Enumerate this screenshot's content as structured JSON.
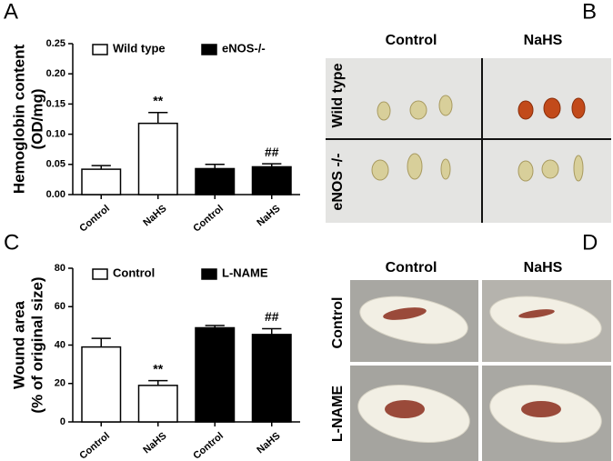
{
  "panel_labels": [
    "A",
    "B",
    "C",
    "D"
  ],
  "chart_data": [
    {
      "type": "bar",
      "y_label": [
        "Hemoglobin content",
        "(OD/mg)"
      ],
      "categories": [
        "Control",
        "NaHS",
        "Control",
        "NaHS"
      ],
      "series": [
        {
          "name": "Wild type",
          "color": "#ffffff",
          "values": [
            0.042,
            0.118,
            null,
            null
          ],
          "errors": [
            0.006,
            0.018,
            null,
            null
          ]
        },
        {
          "name": "eNOS-/-",
          "color": "#000000",
          "values": [
            null,
            null,
            0.043,
            0.046
          ],
          "errors": [
            null,
            null,
            0.007,
            0.005
          ]
        }
      ],
      "bar_labels": [
        null,
        "**",
        null,
        "##"
      ],
      "ylim": [
        0,
        0.25
      ],
      "yticks": [
        {
          "value": 0,
          "label": "0.00"
        },
        0.05,
        {
          "value": 0.1,
          "label": "0.10"
        },
        0.15,
        {
          "value": 0.2,
          "label": "0.20"
        },
        0.25
      ],
      "legend": "top"
    },
    {
      "type": "bar",
      "y_label": [
        "Wound area",
        "(% of original size)"
      ],
      "categories": [
        "Control",
        "NaHS",
        "Control",
        "NaHS"
      ],
      "series": [
        {
          "name": "Control",
          "color": "#ffffff",
          "values": [
            39,
            19,
            null,
            null
          ],
          "errors": [
            4.5,
            2.5,
            null,
            null
          ]
        },
        {
          "name": "L-NAME",
          "color": "#000000",
          "values": [
            null,
            null,
            49,
            45.5
          ],
          "errors": [
            null,
            null,
            1.2,
            3
          ]
        }
      ],
      "bar_labels": [
        null,
        "**",
        null,
        "##"
      ],
      "ylim": [
        0,
        80
      ],
      "yticks": [
        0,
        20,
        40,
        60,
        80
      ],
      "legend": "top"
    }
  ],
  "photo_panels": [
    {
      "columns": [
        "Control",
        "NaHS"
      ],
      "rows": [
        "Wild type",
        "eNOS -/-"
      ]
    },
    {
      "columns": [
        "Control",
        "NaHS"
      ],
      "rows": [
        "Control",
        "L-NAME"
      ]
    }
  ]
}
